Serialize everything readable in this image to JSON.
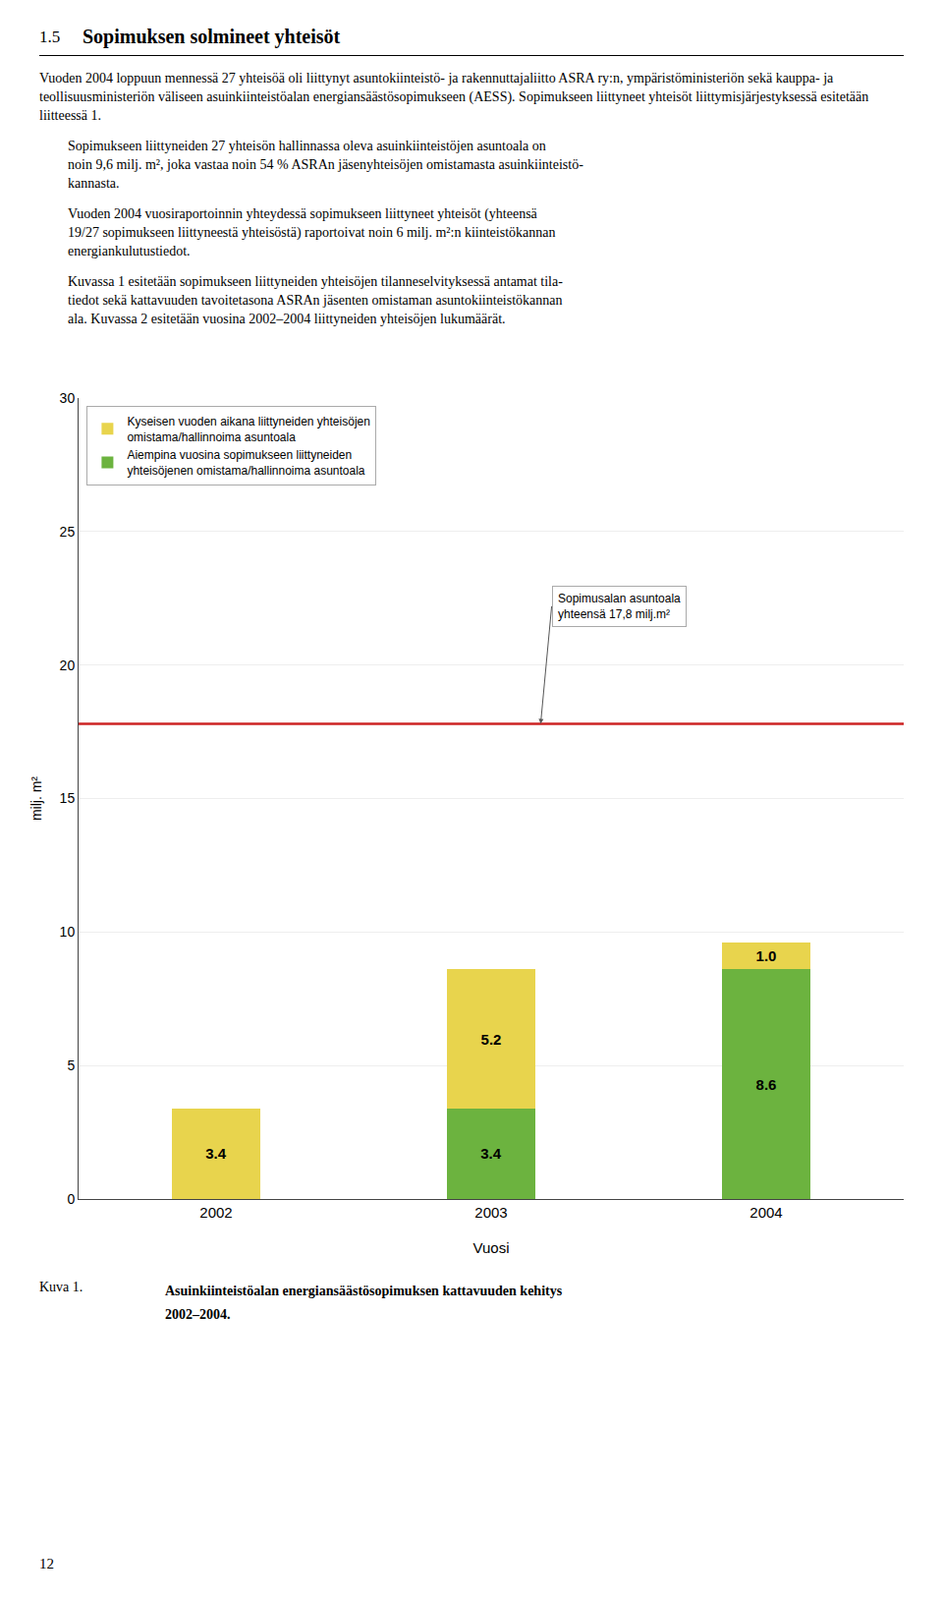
{
  "heading_number": "1.5",
  "heading": "Sopimuksen solmineet yhteisöt",
  "paragraphs": [
    "Vuoden 2004 loppuun mennessä 27 yhteisöä oli liittynyt asuntokiinteistö- ja rakennuttajaliitto ASRA ry:n, ympäristöministeriön sekä kauppa- ja teollisuusministeriön väliseen asuinkiinteistöalan energiansäästösopimukseen (AESS). Sopimukseen liittyneet yhteisöt liittymisjärjestyksessä esitetään liitteessä 1.",
    "Sopimukseen liittyneiden 27 yhteisön hallinnassa oleva asuinkiinteistöjen asuntoala on\nnoin 9,6 milj. m², joka vastaa noin 54 % ASRAn jäsenyhteisöjen omistamasta asuinkiinteistö-\nkannasta.",
    "Vuoden 2004 vuosiraportoinnin yhteydessä sopimukseen liittyneet yhteisöt (yhteensä\n19/27 sopimukseen liittyneestä yhteisöstä) raportoivat noin 6 milj. m²:n kiinteistökannan\nenergiankulutustiedot.",
    "Kuvassa 1 esitetään sopimukseen liittyneiden yhteisöjen tilanneselvityksessä antamat tila-\ntiedot sekä kattavuuden tavoitetasona ASRAn jäsenten omistaman asuntokiinteistökannan\nala. Kuvassa 2 esitetään vuosina 2002–2004 liittyneiden yhteisöjen lukumäärät."
  ],
  "caption_label": "Kuva 1.",
  "page_number": "12",
  "chart_data": {
    "type": "bar",
    "title": "Asuinkiinteistöalan energiansäästösopimuksen kattavuuden kehitys\n2002–2004.",
    "stacked": true,
    "categories": [
      "2002",
      "2003",
      "2004"
    ],
    "series": [
      {
        "name": "Aiempina vuosina sopimukseen liittyneiden\nyhteisöjenen omistama/hallinnoima asuntoala",
        "color": "#6CB33F",
        "values": [
          0.0,
          3.4,
          8.6
        ],
        "value_labels": [
          null,
          "3.4",
          "8.6"
        ]
      },
      {
        "name": "Kyseisen vuoden aikana liittyneiden yhteisöjen\nomistama/hallinnoima asuntoala",
        "color": "#E8D44D",
        "values": [
          3.4,
          5.2,
          1.0
        ],
        "value_labels": [
          "3.4",
          "5.2",
          "1.0"
        ]
      }
    ],
    "xlabel": "Vuosi",
    "ylabel": "milj. m²",
    "ylim": [
      0,
      30
    ],
    "yticks": [
      0,
      5,
      10,
      15,
      20,
      25,
      30
    ],
    "grid": true,
    "legend": "upper left",
    "data_labels": true,
    "reference_line": {
      "value": 17.8,
      "color": "#CC2222",
      "annotation": "Sopimusalan asuntoala\nyhteensä 17,8 milj.m²"
    }
  }
}
